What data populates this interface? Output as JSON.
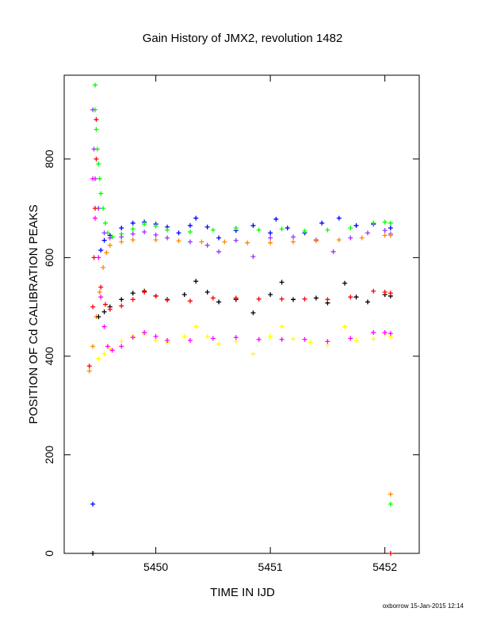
{
  "chart_data": {
    "type": "scatter",
    "title": "Gain History of JMX2, revolution 1482",
    "xlabel": "TIME IN IJD",
    "ylabel": "POSITION OF Cd CALIBRATION PEAKS",
    "xlim": [
      5449.2,
      5452.3
    ],
    "ylim": [
      0,
      970
    ],
    "xticks": [
      5450,
      5451,
      5452
    ],
    "yticks": [
      0,
      200,
      400,
      600,
      800
    ],
    "grid": false,
    "marker": "+",
    "series": [
      {
        "color": "#0000ff",
        "points": [
          [
            5449.45,
            100
          ],
          [
            5449.52,
            615
          ],
          [
            5449.55,
            635
          ],
          [
            5449.6,
            645
          ],
          [
            5449.7,
            660
          ],
          [
            5449.8,
            670
          ],
          [
            5449.9,
            672
          ],
          [
            5450,
            668
          ],
          [
            5450.1,
            662
          ],
          [
            5450.2,
            650
          ],
          [
            5450.3,
            665
          ],
          [
            5450.35,
            680
          ],
          [
            5450.45,
            662
          ],
          [
            5450.55,
            640
          ],
          [
            5450.7,
            655
          ],
          [
            5450.85,
            665
          ],
          [
            5451,
            650
          ],
          [
            5451.05,
            678
          ],
          [
            5451.15,
            660
          ],
          [
            5451.3,
            650
          ],
          [
            5451.45,
            670
          ],
          [
            5451.6,
            680
          ],
          [
            5451.75,
            665
          ],
          [
            5451.9,
            668
          ],
          [
            5452.05,
            660
          ]
        ]
      },
      {
        "color": "#00ff00",
        "points": [
          [
            5449.47,
            950
          ],
          [
            5449.47,
            900
          ],
          [
            5449.48,
            860
          ],
          [
            5449.49,
            820
          ],
          [
            5449.5,
            790
          ],
          [
            5449.51,
            760
          ],
          [
            5449.52,
            730
          ],
          [
            5449.54,
            700
          ],
          [
            5449.56,
            670
          ],
          [
            5449.58,
            650
          ],
          [
            5449.62,
            642
          ],
          [
            5449.7,
            648
          ],
          [
            5449.8,
            658
          ],
          [
            5449.9,
            668
          ],
          [
            5450,
            664
          ],
          [
            5450.1,
            656
          ],
          [
            5450.3,
            652
          ],
          [
            5450.5,
            656
          ],
          [
            5450.7,
            660
          ],
          [
            5450.9,
            656
          ],
          [
            5451.1,
            658
          ],
          [
            5451.3,
            654
          ],
          [
            5451.5,
            656
          ],
          [
            5451.7,
            660
          ],
          [
            5451.9,
            670
          ],
          [
            5452,
            672
          ],
          [
            5452.05,
            670
          ],
          [
            5452.05,
            100
          ]
        ]
      },
      {
        "color": "#9933ff",
        "points": [
          [
            5449.45,
            900
          ],
          [
            5449.46,
            820
          ],
          [
            5449.47,
            760
          ],
          [
            5449.5,
            700
          ],
          [
            5449.55,
            650
          ],
          [
            5449.6,
            640
          ],
          [
            5449.7,
            642
          ],
          [
            5449.8,
            648
          ],
          [
            5449.9,
            652
          ],
          [
            5450,
            646
          ],
          [
            5450.1,
            640
          ],
          [
            5450.3,
            632
          ],
          [
            5450.45,
            625
          ],
          [
            5450.55,
            612
          ],
          [
            5450.7,
            635
          ],
          [
            5450.85,
            602
          ],
          [
            5451,
            640
          ],
          [
            5451.2,
            642
          ],
          [
            5451.4,
            636
          ],
          [
            5451.55,
            612
          ],
          [
            5451.7,
            640
          ],
          [
            5451.85,
            650
          ],
          [
            5452,
            655
          ],
          [
            5452.05,
            648
          ]
        ]
      },
      {
        "color": "#ff8800",
        "points": [
          [
            5449.42,
            370
          ],
          [
            5449.45,
            420
          ],
          [
            5449.48,
            480
          ],
          [
            5449.51,
            530
          ],
          [
            5449.54,
            580
          ],
          [
            5449.57,
            610
          ],
          [
            5449.6,
            625
          ],
          [
            5449.7,
            632
          ],
          [
            5449.8,
            636
          ],
          [
            5450,
            636
          ],
          [
            5450.2,
            634
          ],
          [
            5450.4,
            632
          ],
          [
            5450.6,
            632
          ],
          [
            5450.8,
            630
          ],
          [
            5451,
            630
          ],
          [
            5451.2,
            632
          ],
          [
            5451.4,
            634
          ],
          [
            5451.6,
            636
          ],
          [
            5451.8,
            640
          ],
          [
            5452,
            645
          ],
          [
            5452.05,
            645
          ],
          [
            5452.05,
            120
          ]
        ]
      },
      {
        "color": "#000000",
        "points": [
          [
            5449.45,
            0
          ],
          [
            5449.5,
            480
          ],
          [
            5449.55,
            490
          ],
          [
            5449.6,
            500
          ],
          [
            5449.7,
            515
          ],
          [
            5449.8,
            528
          ],
          [
            5449.9,
            532
          ],
          [
            5450,
            522
          ],
          [
            5450.1,
            515
          ],
          [
            5450.25,
            525
          ],
          [
            5450.35,
            552
          ],
          [
            5450.45,
            530
          ],
          [
            5450.55,
            510
          ],
          [
            5450.7,
            515
          ],
          [
            5450.85,
            488
          ],
          [
            5451,
            525
          ],
          [
            5451.1,
            550
          ],
          [
            5451.2,
            515
          ],
          [
            5451.4,
            518
          ],
          [
            5451.5,
            508
          ],
          [
            5451.65,
            548
          ],
          [
            5451.75,
            520
          ],
          [
            5451.85,
            510
          ],
          [
            5452,
            525
          ],
          [
            5452.05,
            522
          ]
        ]
      },
      {
        "color": "#ff0000",
        "points": [
          [
            5449.42,
            380
          ],
          [
            5449.45,
            500
          ],
          [
            5449.46,
            600
          ],
          [
            5449.47,
            700
          ],
          [
            5449.48,
            800
          ],
          [
            5449.48,
            880
          ],
          [
            5449.52,
            540
          ],
          [
            5449.56,
            505
          ],
          [
            5449.6,
            495
          ],
          [
            5449.7,
            502
          ],
          [
            5449.8,
            515
          ],
          [
            5449.9,
            530
          ],
          [
            5450,
            522
          ],
          [
            5450.1,
            514
          ],
          [
            5450.3,
            512
          ],
          [
            5450.5,
            518
          ],
          [
            5450.7,
            518
          ],
          [
            5450.9,
            516
          ],
          [
            5451.1,
            516
          ],
          [
            5451.3,
            516
          ],
          [
            5451.5,
            515
          ],
          [
            5451.7,
            520
          ],
          [
            5451.9,
            532
          ],
          [
            5452,
            530
          ],
          [
            5452.05,
            528
          ],
          [
            5452.05,
            0
          ]
        ]
      },
      {
        "color": "#ffff00",
        "points": [
          [
            5449.5,
            395
          ],
          [
            5449.55,
            405
          ],
          [
            5449.6,
            415
          ],
          [
            5449.7,
            430
          ],
          [
            5449.8,
            440
          ],
          [
            5449.9,
            445
          ],
          [
            5450,
            432
          ],
          [
            5450.1,
            428
          ],
          [
            5450.25,
            440
          ],
          [
            5450.35,
            460
          ],
          [
            5450.45,
            440
          ],
          [
            5450.55,
            425
          ],
          [
            5450.7,
            430
          ],
          [
            5450.85,
            405
          ],
          [
            5451,
            440
          ],
          [
            5451.1,
            460
          ],
          [
            5451.2,
            435
          ],
          [
            5451.35,
            428
          ],
          [
            5451.5,
            422
          ],
          [
            5451.65,
            460
          ],
          [
            5451.75,
            432
          ],
          [
            5451.9,
            435
          ],
          [
            5452,
            445
          ],
          [
            5452.05,
            440
          ]
        ]
      },
      {
        "color": "#ff00ff",
        "points": [
          [
            5449.45,
            760
          ],
          [
            5449.47,
            680
          ],
          [
            5449.5,
            600
          ],
          [
            5449.52,
            520
          ],
          [
            5449.55,
            460
          ],
          [
            5449.58,
            420
          ],
          [
            5449.62,
            412
          ],
          [
            5449.7,
            420
          ],
          [
            5449.8,
            438
          ],
          [
            5449.9,
            448
          ],
          [
            5450,
            440
          ],
          [
            5450.1,
            432
          ],
          [
            5450.3,
            432
          ],
          [
            5450.5,
            436
          ],
          [
            5450.7,
            438
          ],
          [
            5450.9,
            434
          ],
          [
            5451.1,
            434
          ],
          [
            5451.3,
            434
          ],
          [
            5451.5,
            430
          ],
          [
            5451.7,
            436
          ],
          [
            5451.9,
            448
          ],
          [
            5452,
            448
          ],
          [
            5452.05,
            446
          ]
        ]
      }
    ]
  },
  "footer": {
    "stamp": "oxborrow 15-Jan-2015 12:14"
  }
}
